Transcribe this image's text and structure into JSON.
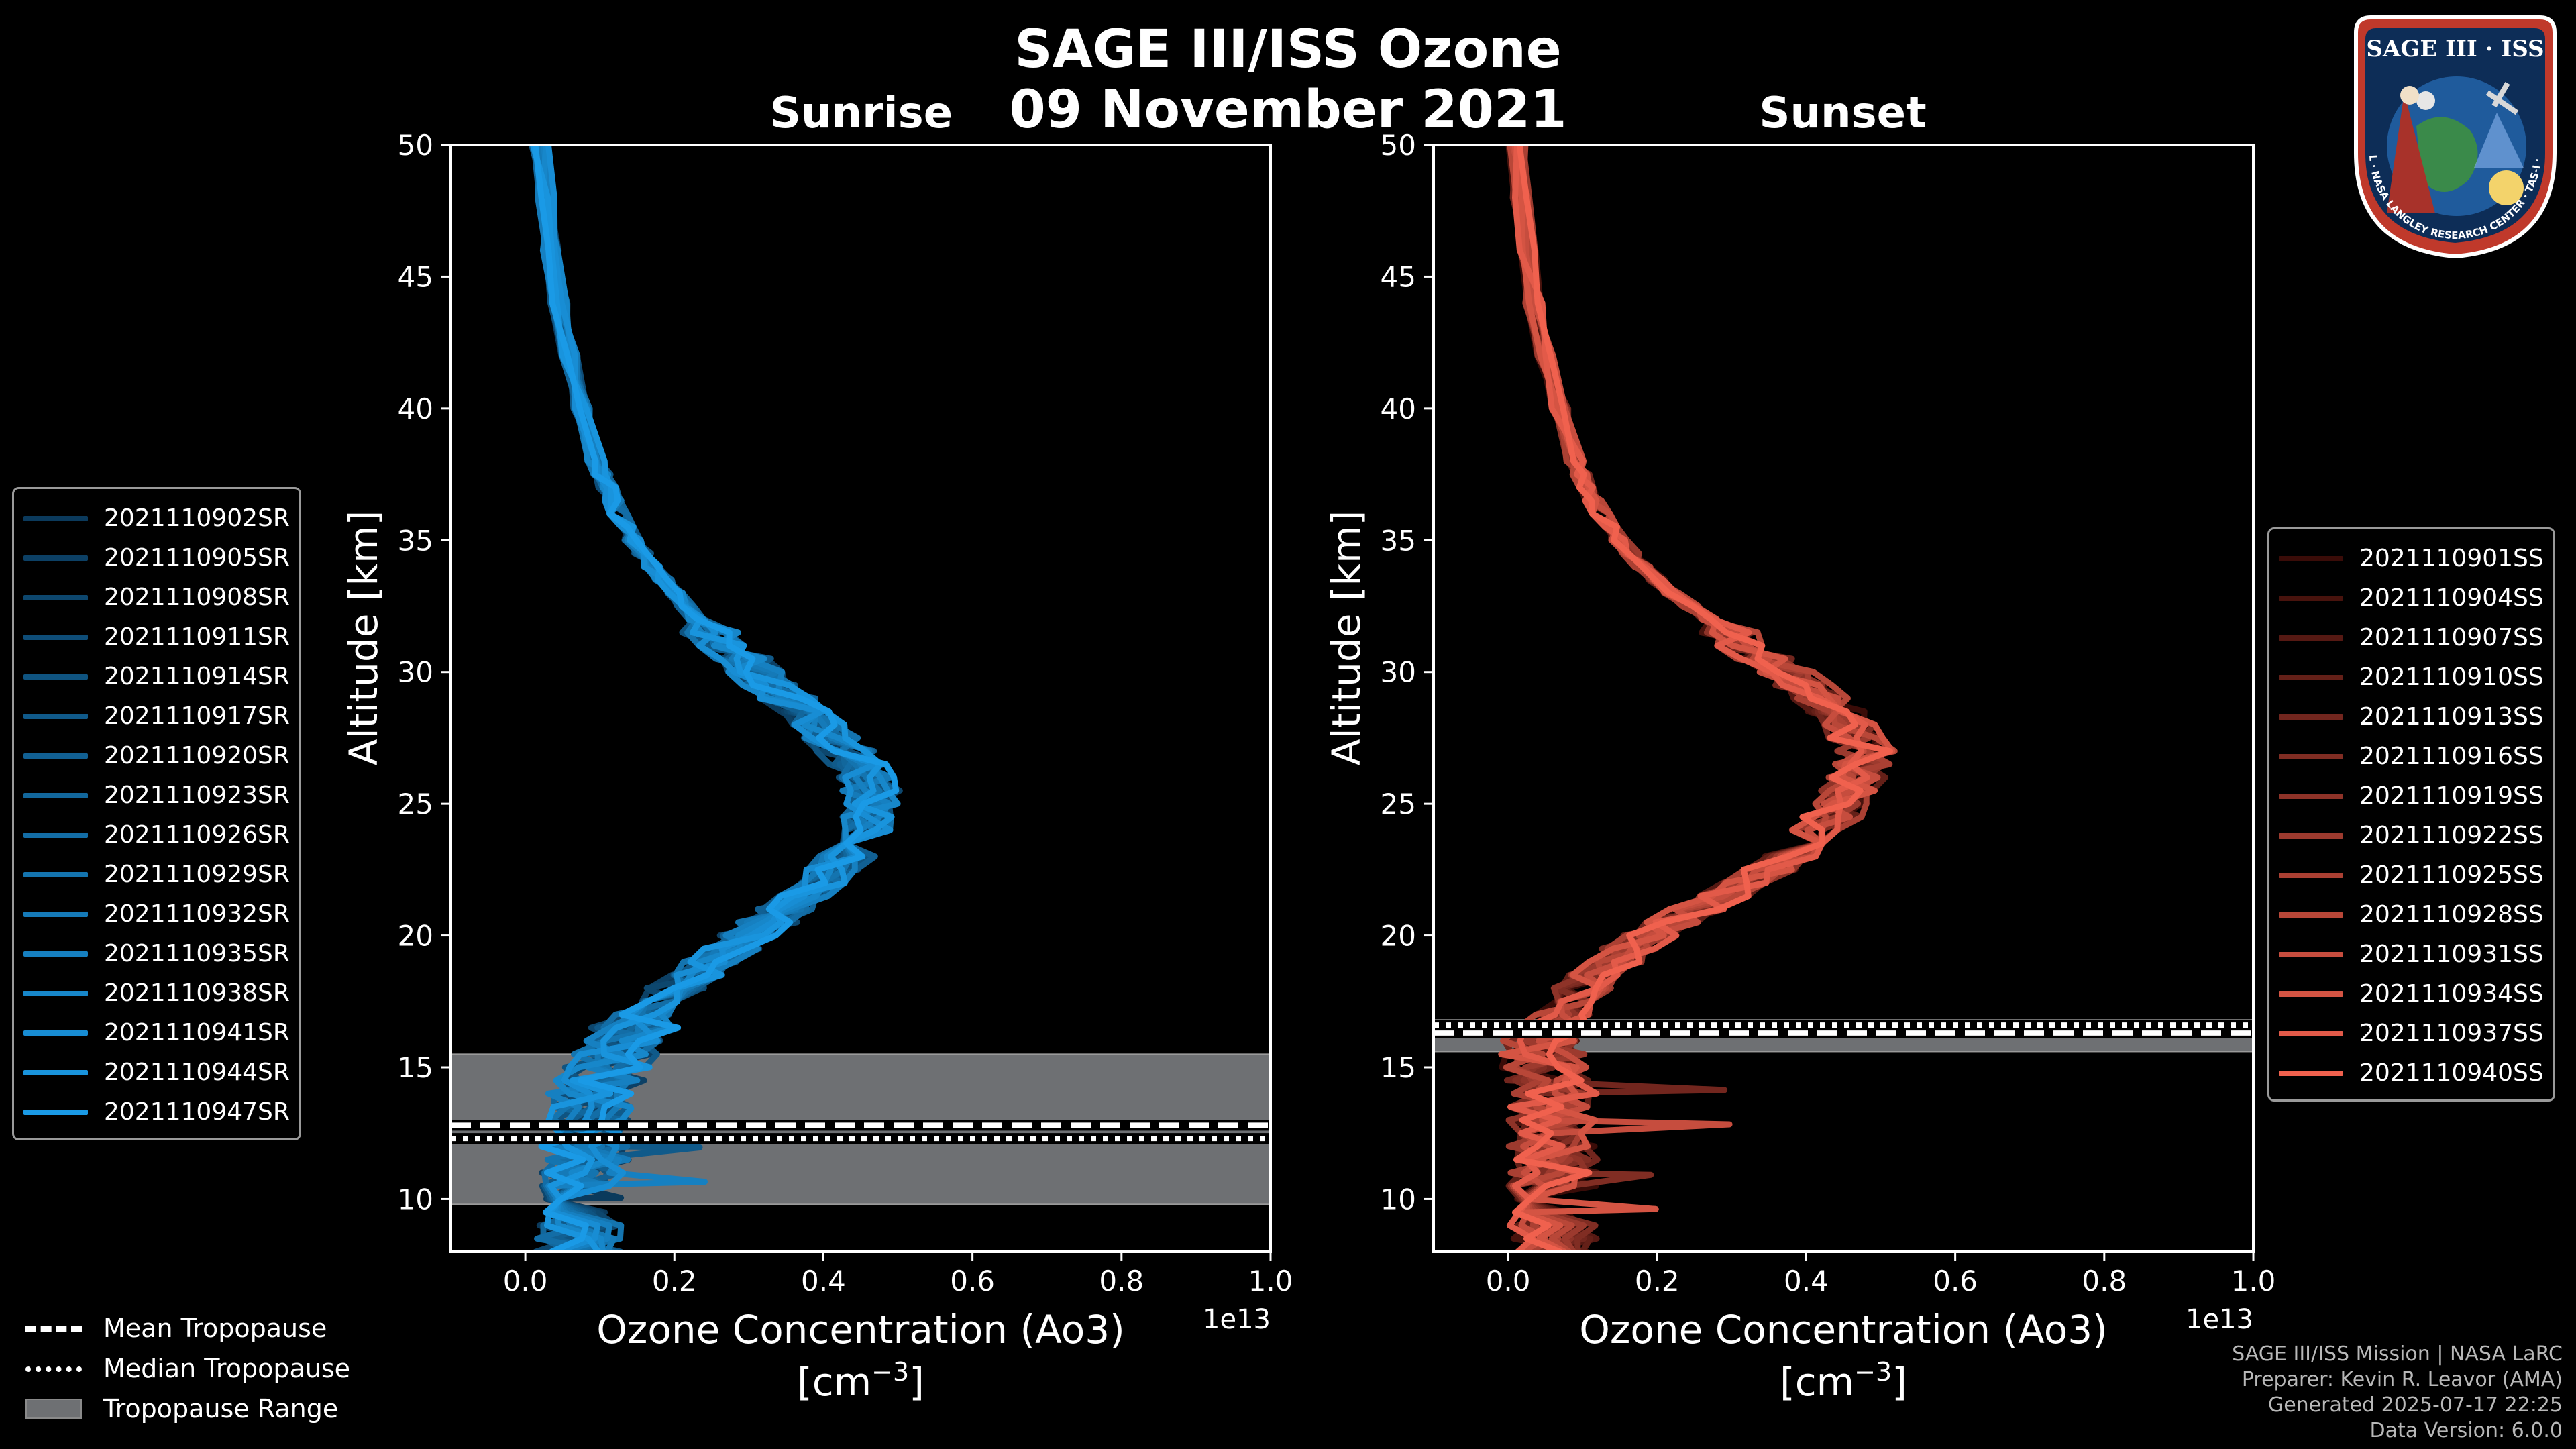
{
  "header": {
    "title_line1": "SAGE III/ISS Ozone",
    "title_line2": "09 November 2021"
  },
  "panels": [
    {
      "title": "Sunrise",
      "ylabel": "Altitude [km]",
      "xlabel": "Ozone Concentration (Ao3)",
      "unit_prefix": "[cm",
      "unit_exp": "−3",
      "unit_suffix": "]",
      "offset_text": "1e13"
    },
    {
      "title": "Sunset",
      "ylabel": "Altitude [km]",
      "xlabel": "Ozone Concentration (Ao3)",
      "unit_prefix": "[cm",
      "unit_exp": "−3",
      "unit_suffix": "]",
      "offset_text": "1e13"
    }
  ],
  "legend_sunrise": [
    "2021110902SR",
    "2021110905SR",
    "2021110908SR",
    "2021110911SR",
    "2021110914SR",
    "2021110917SR",
    "2021110920SR",
    "2021110923SR",
    "2021110926SR",
    "2021110929SR",
    "2021110932SR",
    "2021110935SR",
    "2021110938SR",
    "2021110941SR",
    "2021110944SR",
    "2021110947SR"
  ],
  "legend_sunset": [
    "2021110901SS",
    "2021110904SS",
    "2021110907SS",
    "2021110910SS",
    "2021110913SS",
    "2021110916SS",
    "2021110919SS",
    "2021110922SS",
    "2021110925SS",
    "2021110928SS",
    "2021110931SS",
    "2021110934SS",
    "2021110937SS",
    "2021110940SS"
  ],
  "bottom_legend": {
    "mean": "Mean Tropopause",
    "median": "Median Tropopause",
    "range": "Tropopause Range"
  },
  "footer": {
    "line1": "SAGE III/ISS Mission | NASA LaRC",
    "line2": "Preparer: Kevin R. Leavor (AMA)",
    "line3": "Generated 2025-07-17 22:25",
    "line4": "Data Version: 6.0.0"
  },
  "logo": {
    "top_text": "SAGE III · ISS",
    "ring_text": "BALL · NASA LANGLEY RESEARCH CENTER · TAS-I · ESA"
  },
  "colors": {
    "sunrise_dark": "#0b3a5c",
    "sunrise_light": "#1a9ae6",
    "sunset_dark": "#3a0c08",
    "sunset_light": "#f0614e",
    "trop_range": "#6e7073"
  },
  "chart_data": [
    {
      "type": "line",
      "title": "Sunrise",
      "xlabel": "Ozone Concentration (Ao3) [cm^-3]",
      "ylabel": "Altitude [km]",
      "xlim": [
        -0.1,
        1.0
      ],
      "ylim": [
        8,
        50
      ],
      "x_ticks": [
        "0.0",
        "0.2",
        "0.4",
        "0.6",
        "0.8",
        "1.0"
      ],
      "y_ticks": [
        "10",
        "15",
        "20",
        "25",
        "30",
        "35",
        "40",
        "45",
        "50"
      ],
      "x_scale_offset": "1e13",
      "tropopause": {
        "mean": 12.8,
        "median": 12.3,
        "range": [
          9.8,
          15.5
        ]
      },
      "profile_altitudes": [
        8,
        9,
        10,
        11,
        12,
        13,
        14,
        15,
        16,
        17,
        18,
        19,
        20,
        21,
        22,
        23,
        24,
        25,
        26,
        27,
        28,
        29,
        30,
        31,
        32,
        33,
        34,
        35,
        36,
        37,
        38,
        40,
        42,
        44,
        46,
        48,
        50
      ],
      "mean_profile": [
        0.07,
        0.07,
        0.08,
        0.08,
        0.08,
        0.08,
        0.09,
        0.11,
        0.13,
        0.16,
        0.2,
        0.25,
        0.3,
        0.35,
        0.39,
        0.43,
        0.46,
        0.47,
        0.46,
        0.43,
        0.39,
        0.35,
        0.31,
        0.27,
        0.23,
        0.2,
        0.17,
        0.145,
        0.125,
        0.11,
        0.095,
        0.075,
        0.06,
        0.045,
        0.035,
        0.028,
        0.02
      ],
      "series": [
        "2021110902SR",
        "2021110905SR",
        "2021110908SR",
        "2021110911SR",
        "2021110914SR",
        "2021110917SR",
        "2021110920SR",
        "2021110923SR",
        "2021110926SR",
        "2021110929SR",
        "2021110932SR",
        "2021110935SR",
        "2021110938SR",
        "2021110941SR",
        "2021110944SR",
        "2021110947SR"
      ]
    },
    {
      "type": "line",
      "title": "Sunset",
      "xlabel": "Ozone Concentration (Ao3) [cm^-3]",
      "ylabel": "Altitude [km]",
      "xlim": [
        -0.1,
        1.0
      ],
      "ylim": [
        8,
        50
      ],
      "x_ticks": [
        "0.0",
        "0.2",
        "0.4",
        "0.6",
        "0.8",
        "1.0"
      ],
      "y_ticks": [
        "10",
        "15",
        "20",
        "25",
        "30",
        "35",
        "40",
        "45",
        "50"
      ],
      "x_scale_offset": "1e13",
      "tropopause": {
        "mean": 16.3,
        "median": 16.6,
        "range": [
          15.6,
          16.8
        ]
      },
      "profile_altitudes": [
        8,
        9,
        10,
        11,
        12,
        13,
        14,
        15,
        16,
        17,
        18,
        19,
        20,
        21,
        22,
        23,
        24,
        25,
        26,
        27,
        28,
        29,
        30,
        31,
        32,
        33,
        34,
        35,
        36,
        37,
        38,
        40,
        42,
        44,
        46,
        48,
        50
      ],
      "mean_profile": [
        0.06,
        0.06,
        0.06,
        0.06,
        0.06,
        0.06,
        0.06,
        0.05,
        0.05,
        0.07,
        0.1,
        0.14,
        0.19,
        0.25,
        0.32,
        0.38,
        0.42,
        0.45,
        0.47,
        0.48,
        0.46,
        0.42,
        0.37,
        0.32,
        0.27,
        0.22,
        0.18,
        0.15,
        0.125,
        0.105,
        0.09,
        0.07,
        0.05,
        0.035,
        0.025,
        0.018,
        0.012
      ],
      "series": [
        "2021110901SS",
        "2021110904SS",
        "2021110907SS",
        "2021110910SS",
        "2021110913SS",
        "2021110916SS",
        "2021110919SS",
        "2021110922SS",
        "2021110925SS",
        "2021110928SS",
        "2021110931SS",
        "2021110934SS",
        "2021110937SS",
        "2021110940SS"
      ]
    }
  ]
}
